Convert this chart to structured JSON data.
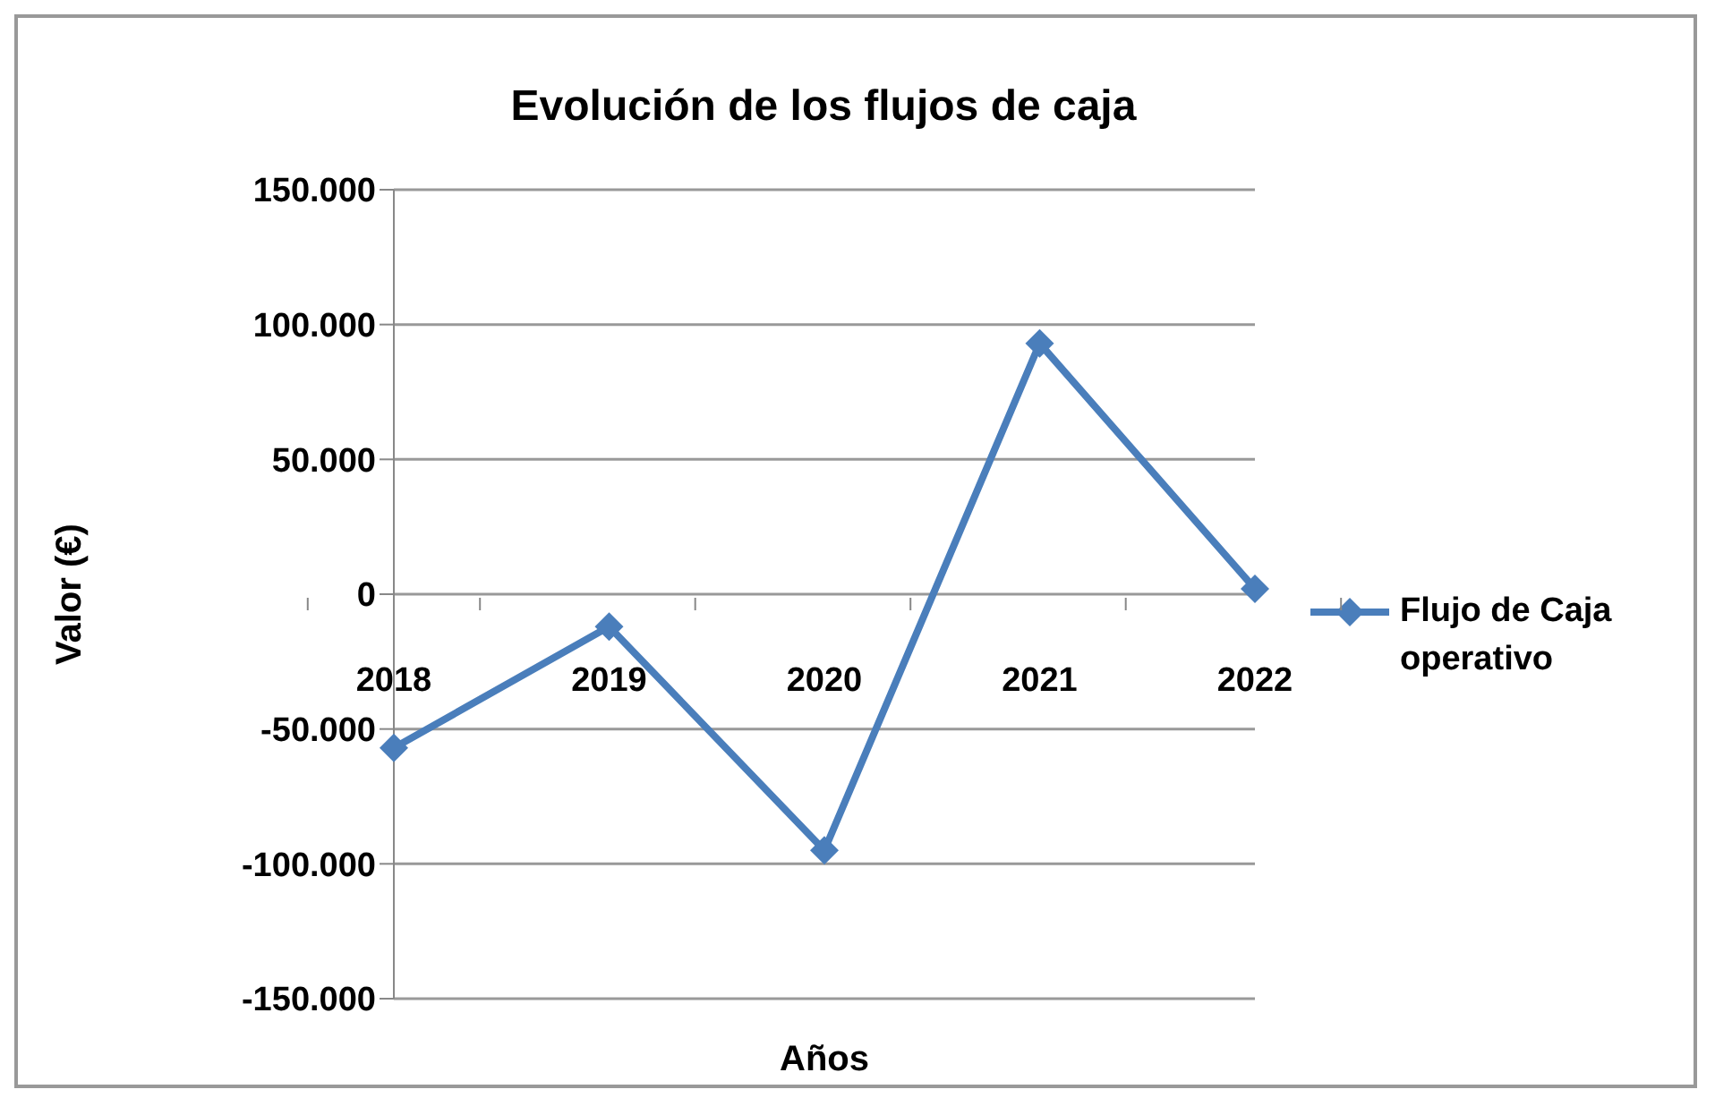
{
  "chart_data": {
    "type": "line",
    "title": "Evolución de los flujos de caja",
    "xlabel": "Años",
    "ylabel": "Valor (€)",
    "categories": [
      "2018",
      "2019",
      "2020",
      "2021",
      "2022"
    ],
    "series": [
      {
        "name": "Flujo de Caja operativo",
        "color": "#4a7ebb",
        "values": [
          -57000,
          -12000,
          -95000,
          93000,
          2000
        ]
      }
    ],
    "ylim": [
      -150000,
      150000
    ],
    "yticks": [
      {
        "value": -150000,
        "label": "-150.000"
      },
      {
        "value": -100000,
        "label": "-100.000"
      },
      {
        "value": -50000,
        "label": "-50.000"
      },
      {
        "value": 0,
        "label": "0"
      },
      {
        "value": 50000,
        "label": "50.000"
      },
      {
        "value": 100000,
        "label": "100.000"
      },
      {
        "value": 150000,
        "label": "150.000"
      }
    ],
    "grid": "y",
    "legend": "right",
    "marker": "diamond",
    "line_style": "solid"
  }
}
